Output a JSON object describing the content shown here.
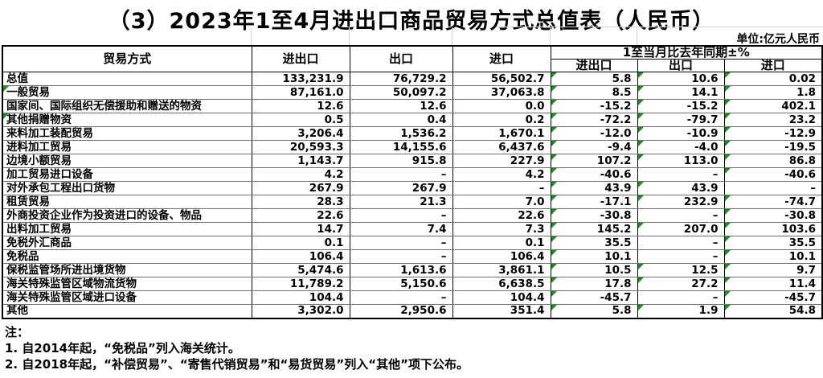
{
  "title": "（3）2023年1至4月进出口商品贸易方式总值表（人民币）",
  "unit_label": "单位:亿元人民币",
  "colors": {
    "flag_green": "#1f8a1f",
    "border_black": "#000000",
    "row_line_gray": "#6e6e6e"
  },
  "table": {
    "header": {
      "trade_mode": "贸易方式",
      "im_ex": "进出口",
      "export": "出口",
      "import": "进口",
      "yoy_group": "1至当月比去年同期±%",
      "yoy_im_ex": "进出口",
      "yoy_export": "出口",
      "yoy_import": "进口"
    },
    "rows": [
      {
        "label": "总值",
        "values": [
          "133,231.9",
          "76,729.2",
          "56,502.7",
          "5.8",
          "10.6",
          "0.02"
        ],
        "flags": [
          0,
          0,
          0,
          0,
          1,
          1,
          1
        ]
      },
      {
        "label": "一般贸易",
        "values": [
          "87,161.0",
          "50,097.2",
          "37,063.8",
          "8.5",
          "14.1",
          "1.8"
        ],
        "flags": [
          1,
          0,
          0,
          0,
          1,
          1,
          1
        ]
      },
      {
        "label": "国家间、国际组织无偿援助和赠送的物资",
        "values": [
          "12.6",
          "12.6",
          "0.0",
          "-15.2",
          "-15.2",
          "402.1"
        ],
        "flags": [
          0,
          0,
          0,
          0,
          1,
          1,
          1
        ]
      },
      {
        "label": "其他捐赠物资",
        "values": [
          "0.5",
          "0.4",
          "0.2",
          "-72.2",
          "-79.7",
          "23.2"
        ],
        "flags": [
          1,
          0,
          0,
          0,
          1,
          1,
          1
        ]
      },
      {
        "label": "来料加工装配贸易",
        "values": [
          "3,206.4",
          "1,536.2",
          "1,670.1",
          "-12.0",
          "-10.9",
          "-12.9"
        ],
        "flags": [
          0,
          0,
          0,
          0,
          1,
          1,
          1
        ]
      },
      {
        "label": "进料加工贸易",
        "values": [
          "20,593.3",
          "14,155.6",
          "6,437.6",
          "-9.4",
          "-4.0",
          "-19.5"
        ],
        "flags": [
          0,
          0,
          0,
          0,
          1,
          1,
          1
        ]
      },
      {
        "label": "边境小额贸易",
        "values": [
          "1,143.7",
          "915.8",
          "227.9",
          "107.2",
          "113.0",
          "86.8"
        ],
        "flags": [
          0,
          0,
          0,
          0,
          1,
          1,
          1
        ]
      },
      {
        "label": "加工贸易进口设备",
        "values": [
          "4.2",
          "–",
          "4.2",
          "-40.6",
          "–",
          "-40.6"
        ],
        "flags": [
          0,
          0,
          0,
          0,
          1,
          0,
          1
        ]
      },
      {
        "label": "对外承包工程出口货物",
        "values": [
          "267.9",
          "267.9",
          "–",
          "43.9",
          "43.9",
          "–"
        ],
        "flags": [
          0,
          0,
          0,
          0,
          1,
          1,
          0
        ]
      },
      {
        "label": "租赁贸易",
        "values": [
          "28.3",
          "21.3",
          "7.0",
          "-17.1",
          "232.9",
          "-74.7"
        ],
        "flags": [
          0,
          0,
          0,
          0,
          1,
          1,
          1
        ]
      },
      {
        "label": "外商投资企业作为投资进口的设备、物品",
        "values": [
          "22.6",
          "–",
          "22.6",
          "-30.8",
          "–",
          "-30.8"
        ],
        "flags": [
          0,
          0,
          0,
          0,
          1,
          0,
          1
        ]
      },
      {
        "label": "出料加工贸易",
        "values": [
          "14.7",
          "7.4",
          "7.3",
          "145.2",
          "207.0",
          "103.6"
        ],
        "flags": [
          0,
          0,
          0,
          0,
          1,
          1,
          1
        ]
      },
      {
        "label": "免税外汇商品",
        "values": [
          "0.1",
          "–",
          "0.1",
          "35.5",
          "–",
          "35.5"
        ],
        "flags": [
          0,
          0,
          0,
          0,
          1,
          0,
          1
        ]
      },
      {
        "label": "免税品",
        "values": [
          "106.4",
          "–",
          "106.4",
          "10.1",
          "–",
          "10.1"
        ],
        "flags": [
          0,
          0,
          0,
          0,
          1,
          0,
          1
        ]
      },
      {
        "label": "保税监管场所进出境货物",
        "values": [
          "5,474.6",
          "1,613.6",
          "3,861.1",
          "10.5",
          "12.5",
          "9.7"
        ],
        "flags": [
          0,
          0,
          0,
          0,
          1,
          1,
          1
        ]
      },
      {
        "label": "海关特殊监管区域物流货物",
        "values": [
          "11,789.2",
          "5,150.6",
          "6,638.5",
          "17.8",
          "27.2",
          "11.4"
        ],
        "flags": [
          0,
          0,
          0,
          0,
          1,
          1,
          1
        ]
      },
      {
        "label": "海关特殊监管区域进口设备",
        "values": [
          "104.4",
          "–",
          "104.4",
          "-45.7",
          "–",
          "-45.7"
        ],
        "flags": [
          0,
          0,
          0,
          0,
          1,
          0,
          1
        ]
      },
      {
        "label": "其他",
        "values": [
          "3,302.0",
          "2,950.6",
          "351.4",
          "5.8",
          "1.9",
          "54.8"
        ],
        "flags": [
          0,
          0,
          0,
          0,
          1,
          1,
          1
        ]
      }
    ]
  },
  "notes": {
    "heading": "注：",
    "items": [
      "1. 自2014年起，“免税品”列入海关统计。",
      "2. 自2018年起，“补偿贸易”、“寄售代销贸易”和“易货贸易”列入“其他”项下公布。"
    ]
  }
}
